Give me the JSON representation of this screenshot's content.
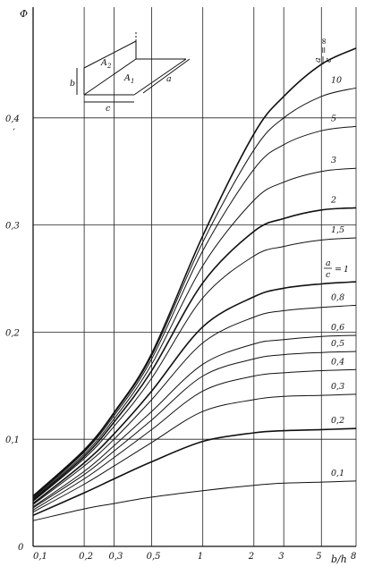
{
  "chart_data": {
    "type": "line",
    "title": "",
    "xlabel": "b/h",
    "ylabel": "Φ",
    "xscale": "log",
    "xlim": [
      0.1,
      8
    ],
    "ylim": [
      0,
      0.5
    ],
    "grid": true,
    "x_ticks": [
      {
        "value": 0.1,
        "label": "0,1"
      },
      {
        "value": 0.2,
        "label": "0,2"
      },
      {
        "value": 0.3,
        "label": "0,3"
      },
      {
        "value": 0.5,
        "label": "0,5"
      },
      {
        "value": 1,
        "label": "1"
      },
      {
        "value": 2,
        "label": "2"
      },
      {
        "value": 3,
        "label": "3"
      },
      {
        "value": 5,
        "label": "5"
      },
      {
        "value": 8,
        "label": "8"
      }
    ],
    "y_ticks": [
      {
        "value": 0,
        "label": "0"
      },
      {
        "value": 0.1,
        "label": "0,1"
      },
      {
        "value": 0.2,
        "label": "0,2"
      },
      {
        "value": 0.3,
        "label": "0,3"
      },
      {
        "value": 0.4,
        "label": "0,4"
      }
    ],
    "x": [
      0.1,
      0.2,
      0.3,
      0.5,
      1,
      2,
      3,
      5,
      8
    ],
    "series": [
      {
        "name": "∞",
        "heavy": true,
        "values": [
          0.047,
          0.09,
          0.125,
          0.18,
          0.29,
          0.385,
          0.42,
          0.45,
          0.465
        ]
      },
      {
        "name": "10",
        "heavy": false,
        "values": [
          0.046,
          0.089,
          0.124,
          0.178,
          0.284,
          0.37,
          0.4,
          0.42,
          0.428
        ]
      },
      {
        "name": "5",
        "heavy": false,
        "values": [
          0.045,
          0.088,
          0.122,
          0.175,
          0.276,
          0.352,
          0.375,
          0.388,
          0.392
        ]
      },
      {
        "name": "3",
        "heavy": false,
        "values": [
          0.044,
          0.086,
          0.119,
          0.17,
          0.262,
          0.323,
          0.34,
          0.35,
          0.353
        ]
      },
      {
        "name": "2",
        "heavy": true,
        "values": [
          0.043,
          0.084,
          0.116,
          0.164,
          0.246,
          0.294,
          0.306,
          0.314,
          0.316
        ]
      },
      {
        "name": "1,5",
        "heavy": false,
        "values": [
          0.042,
          0.082,
          0.112,
          0.157,
          0.232,
          0.271,
          0.28,
          0.286,
          0.288
        ]
      },
      {
        "name": "1",
        "heavy": true,
        "values": [
          0.04,
          0.078,
          0.105,
          0.145,
          0.205,
          0.233,
          0.241,
          0.245,
          0.247
        ]
      },
      {
        "name": "0,8",
        "heavy": false,
        "values": [
          0.039,
          0.075,
          0.1,
          0.137,
          0.19,
          0.214,
          0.22,
          0.223,
          0.225
        ]
      },
      {
        "name": "0,6",
        "heavy": false,
        "values": [
          0.037,
          0.07,
          0.094,
          0.126,
          0.17,
          0.189,
          0.193,
          0.196,
          0.197
        ]
      },
      {
        "name": "0,5",
        "heavy": false,
        "values": [
          0.036,
          0.067,
          0.089,
          0.118,
          0.159,
          0.175,
          0.179,
          0.181,
          0.182
        ]
      },
      {
        "name": "0,4",
        "heavy": false,
        "values": [
          0.034,
          0.063,
          0.083,
          0.109,
          0.145,
          0.159,
          0.162,
          0.164,
          0.165
        ]
      },
      {
        "name": "0,3",
        "heavy": false,
        "values": [
          0.032,
          0.058,
          0.075,
          0.097,
          0.126,
          0.137,
          0.14,
          0.141,
          0.142
        ]
      },
      {
        "name": "0,2",
        "heavy": true,
        "values": [
          0.029,
          0.05,
          0.063,
          0.079,
          0.098,
          0.106,
          0.108,
          0.109,
          0.11
        ]
      },
      {
        "name": "0,1",
        "heavy": false,
        "values": [
          0.024,
          0.035,
          0.04,
          0.046,
          0.052,
          0.057,
          0.059,
          0.06,
          0.061
        ]
      }
    ],
    "legend_ratio_label": {
      "num": "a",
      "den": "c",
      "eq": "="
    },
    "inset": {
      "labels": [
        "A",
        "2",
        "A",
        "1",
        "a",
        "b",
        "c"
      ]
    },
    "side_mark": "‘"
  }
}
